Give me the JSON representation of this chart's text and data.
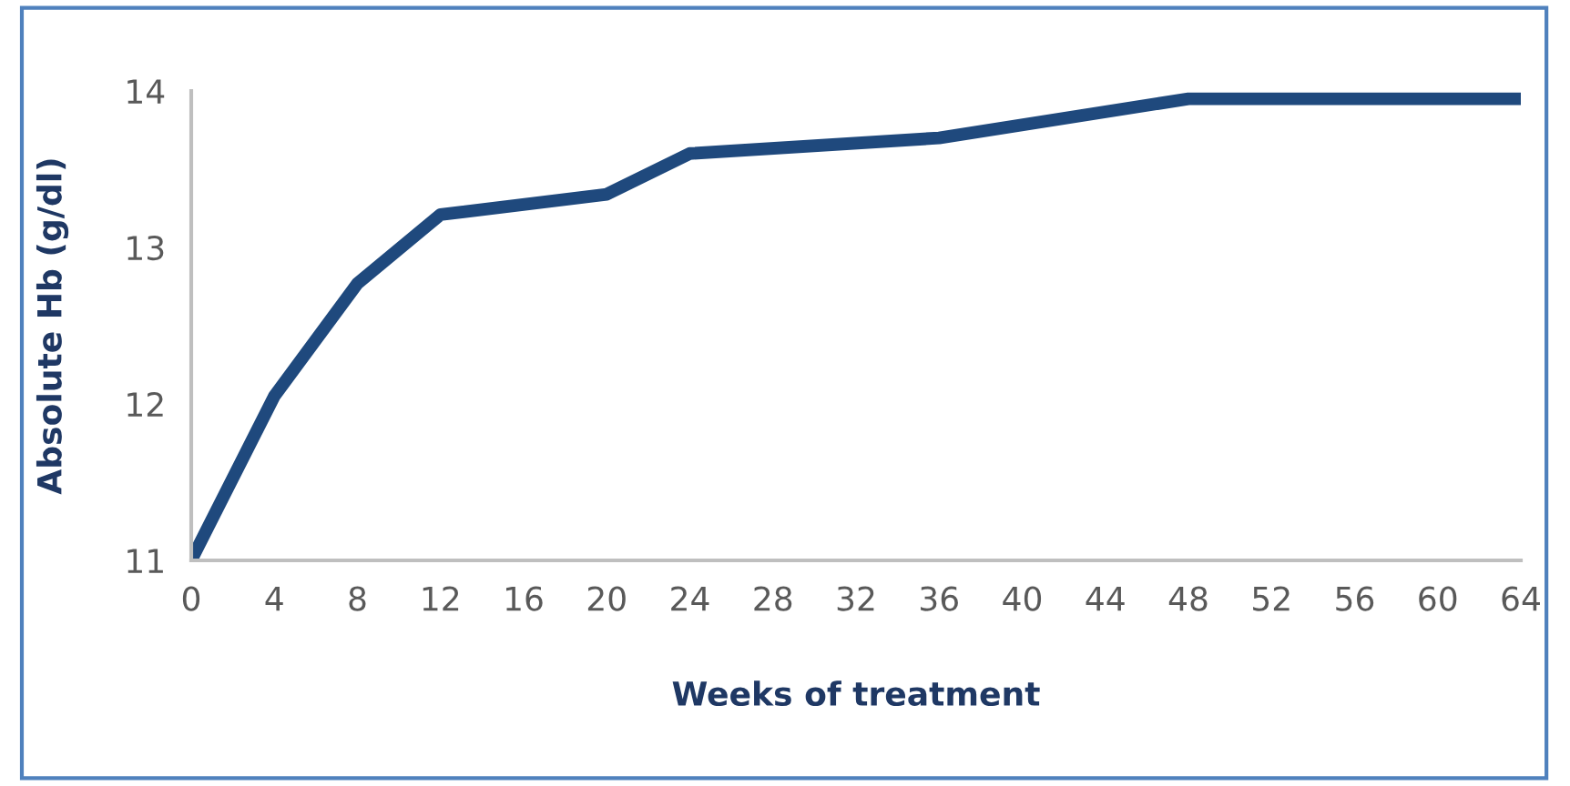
{
  "chart_data": {
    "type": "line",
    "xlabel": "Weeks of treatment",
    "ylabel": "Absolute Hb (g/dl)",
    "x": [
      0,
      4,
      8,
      12,
      20,
      24,
      36,
      48,
      64
    ],
    "series": [
      {
        "color": "#1f497d",
        "values": [
          11,
          12.05,
          12.77,
          13.21,
          13.34,
          13.6,
          13.7,
          13.95,
          13.95
        ]
      }
    ],
    "xlim": [
      0,
      64
    ],
    "xticks": [
      0,
      4,
      8,
      12,
      16,
      20,
      24,
      28,
      32,
      36,
      40,
      44,
      48,
      52,
      56,
      60,
      64
    ],
    "ylim": [
      11,
      14
    ],
    "yticks": [
      11,
      12,
      13,
      14
    ],
    "grid": false,
    "legend": false,
    "marker": "none",
    "line_style": "solid"
  }
}
